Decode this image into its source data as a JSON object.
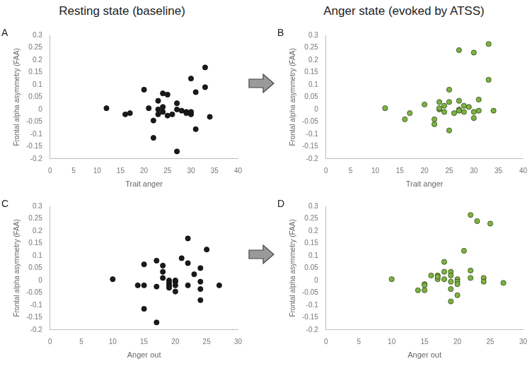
{
  "headers": [
    "Resting state (baseline)",
    "Anger state (evoked by ATSS)"
  ],
  "chart_data": [
    {
      "type": "scatter",
      "panel_label": "A",
      "x_label": "Trait anger",
      "y_label": "Frontal alpha asymmetry (FAA)",
      "x": [
        12,
        16,
        17,
        20,
        21,
        22,
        22,
        23,
        23,
        23,
        24,
        24,
        24,
        25,
        25,
        26,
        27,
        27,
        27,
        28,
        29,
        29,
        30,
        30,
        31,
        31,
        33,
        33,
        34,
        30
      ],
      "values": [
        0.005,
        -0.02,
        -0.015,
        0.08,
        0.005,
        -0.045,
        -0.115,
        -0.02,
        0.035,
        0,
        0.065,
        0.01,
        -0.01,
        0.06,
        -0.025,
        -0.02,
        0.025,
        0,
        -0.17,
        -0.005,
        -0.01,
        -0.015,
        -0.02,
        0.125,
        0.07,
        -0.08,
        0.17,
        0.09,
        -0.03,
        -0.01
      ],
      "color": "#1a1a1a",
      "marker": "circle",
      "grid": false,
      "xlim": [
        0,
        40
      ],
      "xticks": [
        0,
        5,
        10,
        15,
        20,
        25,
        30,
        35,
        40
      ],
      "ylim": [
        -0.2,
        0.3
      ],
      "yticks": [
        -0.2,
        -0.15,
        -0.1,
        -0.05,
        0,
        0.05,
        0.1,
        0.15,
        0.2,
        0.25,
        0.3
      ]
    },
    {
      "type": "scatter",
      "panel_label": "B",
      "x_label": "Trait anger",
      "y_label": "Frontal alpha asymmetry (FAA)",
      "x": [
        12,
        16,
        17,
        20,
        22,
        22,
        23,
        23,
        23,
        24,
        24,
        25,
        25,
        25,
        26,
        27,
        27,
        27,
        27,
        28,
        28,
        29,
        30,
        30,
        30,
        31,
        31,
        33,
        33,
        34
      ],
      "values": [
        0.005,
        -0.04,
        -0.015,
        0.02,
        -0.04,
        -0.06,
        0.03,
        0,
        0.005,
        0.015,
        -0.01,
        0.08,
        0.03,
        -0.085,
        -0.015,
        0.24,
        0.035,
        0,
        -0.005,
        0.015,
        -0.01,
        0.01,
        0.23,
        -0.035,
        -0.01,
        0.04,
        -0.005,
        0.265,
        0.12,
        -0.005
      ],
      "color": "#7cb342",
      "marker": "circle",
      "grid": false,
      "xlim": [
        0,
        40
      ],
      "xticks": [
        0,
        5,
        10,
        15,
        20,
        25,
        30,
        35,
        40
      ],
      "ylim": [
        -0.2,
        0.3
      ],
      "yticks": [
        -0.2,
        -0.15,
        -0.1,
        -0.05,
        0,
        0.05,
        0.1,
        0.15,
        0.2,
        0.25,
        0.3
      ]
    },
    {
      "type": "scatter",
      "panel_label": "C",
      "x_label": "Anger out",
      "y_label": "Frontal alpha asymmetry (FAA)",
      "x": [
        10,
        14,
        15,
        15,
        15,
        17,
        17,
        17,
        18,
        18,
        18,
        19,
        19,
        19,
        19,
        20,
        20,
        20,
        20,
        21,
        22,
        22,
        22,
        23,
        24,
        24,
        24,
        24,
        25,
        27
      ],
      "values": [
        0.005,
        -0.02,
        0.065,
        -0.115,
        -0.02,
        0.08,
        -0.17,
        -0.025,
        0.06,
        0.035,
        0.01,
        0,
        -0.01,
        -0.02,
        -0.03,
        0,
        -0.005,
        -0.02,
        -0.045,
        0.09,
        0.17,
        0.07,
        -0.02,
        0.025,
        0.05,
        -0.005,
        -0.035,
        -0.08,
        0.125,
        -0.02
      ],
      "color": "#1a1a1a",
      "marker": "circle",
      "grid": false,
      "xlim": [
        0,
        30
      ],
      "xticks": [
        0,
        5,
        10,
        15,
        20,
        25,
        30
      ],
      "ylim": [
        -0.2,
        0.3
      ],
      "yticks": [
        -0.2,
        -0.15,
        -0.1,
        -0.05,
        0,
        0.05,
        0.1,
        0.15,
        0.2,
        0.25,
        0.3
      ]
    },
    {
      "type": "scatter",
      "panel_label": "D",
      "x_label": "Anger out",
      "y_label": "Frontal alpha asymmetry (FAA)",
      "x": [
        10,
        14,
        15,
        15,
        15,
        17,
        17,
        18,
        18,
        18,
        19,
        19,
        19,
        19,
        19,
        20,
        20,
        20,
        21,
        22,
        22,
        22,
        23,
        24,
        24,
        25,
        27,
        20,
        17,
        16
      ],
      "values": [
        0.005,
        -0.04,
        -0.015,
        -0.04,
        -0.02,
        0.02,
        0.005,
        0.075,
        0.035,
        0.005,
        0.035,
        0.02,
        -0.005,
        -0.035,
        -0.085,
        0.005,
        -0.005,
        -0.06,
        0.12,
        0.265,
        0.04,
        0.01,
        0.24,
        0.01,
        -0.005,
        0.23,
        -0.01,
        -0.015,
        0.015,
        0.02
      ],
      "color": "#7cb342",
      "marker": "circle",
      "grid": false,
      "xlim": [
        0,
        30
      ],
      "xticks": [
        0,
        5,
        10,
        15,
        20,
        25,
        30
      ],
      "ylim": [
        -0.2,
        0.3
      ],
      "yticks": [
        -0.2,
        -0.15,
        -0.1,
        -0.05,
        0,
        0.05,
        0.1,
        0.15,
        0.2,
        0.25,
        0.3
      ]
    }
  ]
}
